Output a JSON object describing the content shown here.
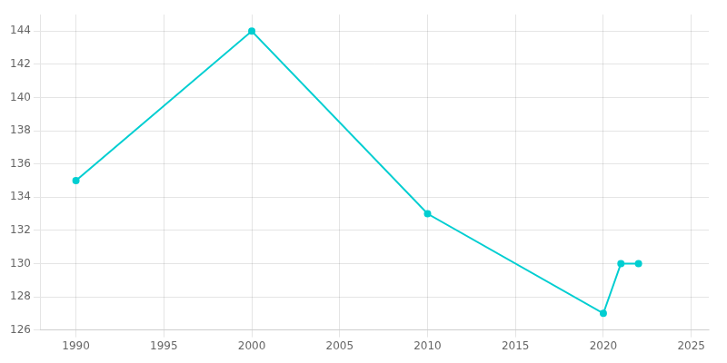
{
  "chart_data": {
    "type": "line",
    "x": [
      1990,
      2000,
      2010,
      2020,
      2021,
      2022
    ],
    "values": [
      135,
      144,
      133,
      127,
      130,
      130
    ],
    "color": "#00CED1",
    "marker": "circle",
    "xlim": [
      1988,
      2026
    ],
    "ylim": [
      126,
      145
    ],
    "xticks": [
      1990,
      1995,
      2000,
      2005,
      2010,
      2015,
      2020,
      2025
    ],
    "yticks": [
      126,
      128,
      130,
      132,
      134,
      136,
      138,
      140,
      142,
      144
    ],
    "grid": true
  }
}
